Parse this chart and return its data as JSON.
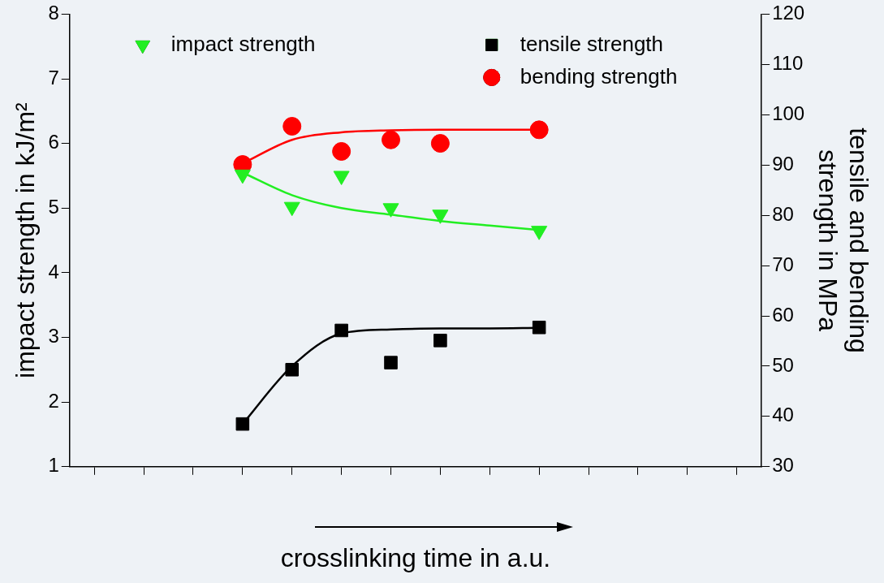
{
  "chart_data": {
    "type": "scatter",
    "xlabel": "crosslinking time in a.u.",
    "ylabel": "impact strength in kJ/m²",
    "y2label": "tensile and bending strength in MPa",
    "categories": [
      null,
      null,
      null,
      null,
      null,
      null,
      null,
      null,
      null,
      null,
      null,
      null,
      null,
      null
    ],
    "ylim": [
      1,
      8
    ],
    "yticks": [
      1,
      2,
      3,
      4,
      5,
      6,
      7,
      8
    ],
    "y2lim": [
      30,
      120
    ],
    "y2ticks": [
      30,
      40,
      50,
      60,
      70,
      80,
      90,
      100,
      110,
      120
    ],
    "legend": "top",
    "grid": false,
    "series": [
      {
        "name": "impact strength",
        "marker": "triangle",
        "color": "#22ee22",
        "values": [
          null,
          null,
          null,
          5.52,
          5.02,
          5.5,
          5.0,
          4.9,
          null,
          4.65,
          null,
          null,
          null,
          null
        ]
      },
      {
        "name": "tensile strength",
        "marker": "square",
        "color": "#000000",
        "axis": "y2",
        "values": [
          null,
          null,
          null,
          38.5,
          49.3,
          57.1,
          50.7,
          55.1,
          null,
          57.7,
          null,
          null,
          null,
          null
        ]
      },
      {
        "name": "bending strength",
        "marker": "circle",
        "color": "#ff0000",
        "axis": "y2",
        "values": [
          null,
          null,
          null,
          90.1,
          97.7,
          92.7,
          95.0,
          94.3,
          null,
          97.0,
          null,
          null,
          null,
          null
        ]
      },
      {
        "type": "line",
        "marker": "none",
        "color": "#22ee22",
        "values": [
          null,
          null,
          null,
          5.55,
          5.2,
          5.0,
          4.9,
          4.8,
          4.73,
          4.66,
          null,
          null,
          null,
          null
        ]
      },
      {
        "type": "line",
        "marker": "none",
        "color": "#000000",
        "axis": "y2",
        "values": [
          null,
          null,
          null,
          38.5,
          50,
          56.5,
          57.3,
          57.5,
          57.5,
          57.6,
          null,
          null,
          null,
          null
        ]
      },
      {
        "type": "line",
        "marker": "none",
        "color": "#ff0000",
        "axis": "y2",
        "values": [
          null,
          null,
          null,
          90.3,
          95,
          96.5,
          96.9,
          97,
          97,
          97,
          null,
          null,
          null,
          null
        ]
      }
    ]
  }
}
